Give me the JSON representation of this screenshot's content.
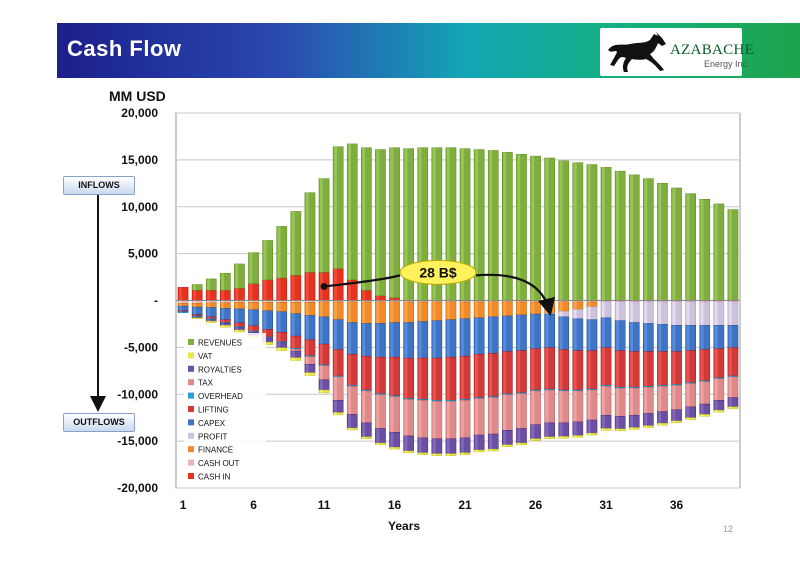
{
  "header": {
    "title": "Cash Flow"
  },
  "logo": {
    "name": "AZABACHE",
    "subtitle": "Energy Inc."
  },
  "side_labels": {
    "inflows": "INFLOWS",
    "outflows": "OUTFLOWS"
  },
  "page_number": "12",
  "colors": {
    "REVENUES": "#7fae3e",
    "VAT": "#e9e64a",
    "ROYALTIES": "#6b4fa3",
    "TAX": "#de8a8a",
    "OVERHEAD": "#2a9fd6",
    "LIFTING": "#d23a3a",
    "CAPEX": "#3f73c4",
    "PROFIT": "#ccc2dc",
    "FINANCE": "#f08a2a",
    "CASH OUT": "#e8b4b4",
    "CASH IN": "#e3321e",
    "callout": "#fff25c"
  },
  "chart_data": {
    "type": "bar",
    "stacked": true,
    "title": "Cash Flow",
    "xlabel": "Years",
    "ylabel": "MM USD",
    "ylim": [
      -20000,
      20000
    ],
    "yticks": [
      20000,
      15000,
      10000,
      5000,
      0,
      -5000,
      -10000,
      -15000,
      -20000
    ],
    "ytick_labels": [
      "20,000",
      "15,000",
      "10,000",
      "5,000",
      "-",
      "-5,000",
      "-10,000",
      "-15,000",
      "-20,000"
    ],
    "xtick_labels": [
      "1",
      "6",
      "11",
      "16",
      "21",
      "26",
      "31",
      "36"
    ],
    "grid": true,
    "legend_position": "bottom-left",
    "legend": [
      "REVENUES",
      "VAT",
      "ROYALTIES",
      "TAX",
      "OVERHEAD",
      "LIFTING",
      "CAPEX",
      "PROFIT",
      "FINANCE",
      "CASH OUT",
      "CASH IN"
    ],
    "x": [
      1,
      2,
      3,
      4,
      5,
      6,
      7,
      8,
      9,
      10,
      11,
      12,
      13,
      14,
      15,
      16,
      17,
      18,
      19,
      20,
      21,
      22,
      23,
      24,
      25,
      26,
      27,
      28,
      29,
      30,
      31,
      32,
      33,
      34,
      35,
      36,
      37,
      38,
      39,
      40
    ],
    "series": [
      {
        "name": "REVENUES",
        "values": [
          0,
          600,
          1200,
          1800,
          2600,
          3300,
          4200,
          5500,
          6800,
          8500,
          10000,
          13000,
          14500,
          15200,
          15600,
          16000,
          16200,
          16300,
          16300,
          16300,
          16200,
          16100,
          16000,
          15800,
          15600,
          15400,
          15200,
          14900,
          14700,
          14500,
          14200,
          13800,
          13400,
          13000,
          12500,
          12000,
          11400,
          10800,
          10300,
          9700
        ]
      },
      {
        "name": "VAT",
        "values": [
          0,
          -100,
          -150,
          -200,
          -200,
          -250,
          -250,
          -300,
          -300,
          -300,
          -300,
          -250,
          -200,
          -200,
          -200,
          -200,
          -200,
          -200,
          -200,
          -200,
          -200,
          -200,
          -200,
          -200,
          -200,
          -200,
          -200,
          -200,
          -200,
          -200,
          -200,
          -200,
          -200,
          -200,
          -200,
          -200,
          -200,
          -200,
          -200,
          -200
        ]
      },
      {
        "name": "ROYALTIES",
        "values": [
          0,
          -100,
          -150,
          -200,
          -250,
          -350,
          -450,
          -550,
          -700,
          -900,
          -1100,
          -1300,
          -1450,
          -1500,
          -1550,
          -1600,
          -1600,
          -1600,
          -1600,
          -1600,
          -1600,
          -1600,
          -1600,
          -1550,
          -1550,
          -1500,
          -1500,
          -1450,
          -1450,
          -1400,
          -1400,
          -1350,
          -1300,
          -1300,
          -1250,
          -1200,
          -1150,
          -1100,
          -1050,
          -1000
        ]
      },
      {
        "name": "TAX",
        "values": [
          0,
          0,
          0,
          0,
          0,
          0,
          0,
          0,
          -200,
          -800,
          -1500,
          -2500,
          -3000,
          -3400,
          -3600,
          -3800,
          -3900,
          -4000,
          -4000,
          -4000,
          -4000,
          -3900,
          -3900,
          -3800,
          -3700,
          -3600,
          -3500,
          -3400,
          -3300,
          -3200,
          -3100,
          -3000,
          -2900,
          -2800,
          -2700,
          -2600,
          -2500,
          -2400,
          -2300,
          -2200
        ]
      },
      {
        "name": "OVERHEAD",
        "values": [
          -100,
          -100,
          -100,
          -100,
          -100,
          -100,
          -100,
          -100,
          -100,
          -100,
          -100,
          -100,
          -100,
          -100,
          -100,
          -100,
          -100,
          -100,
          -100,
          -100,
          -100,
          -100,
          -100,
          -100,
          -100,
          -100,
          -100,
          -100,
          -100,
          -100,
          -100,
          -100,
          -100,
          -100,
          -100,
          -100,
          -100,
          -100,
          -100,
          -100
        ]
      },
      {
        "name": "LIFTING",
        "values": [
          -100,
          -150,
          -200,
          -300,
          -400,
          -600,
          -800,
          -1000,
          -1300,
          -1700,
          -2200,
          -2800,
          -3300,
          -3600,
          -3900,
          -4100,
          -4300,
          -4400,
          -4500,
          -4600,
          -4600,
          -4600,
          -4600,
          -4500,
          -4500,
          -4400,
          -4400,
          -4300,
          -4200,
          -4100,
          -4000,
          -3900,
          -3800,
          -3700,
          -3600,
          -3500,
          -3400,
          -3300,
          -3100,
          -3000
        ]
      },
      {
        "name": "CAPEX",
        "values": [
          -500,
          -800,
          -1000,
          -1200,
          -1500,
          -1700,
          -2000,
          -2200,
          -2400,
          -2600,
          -2900,
          -3200,
          -3400,
          -3500,
          -3600,
          -3700,
          -3800,
          -3900,
          -4000,
          -4000,
          -4000,
          -3900,
          -3900,
          -3800,
          -3800,
          -3700,
          -3600,
          -3500,
          -3400,
          -3300,
          -3200,
          -3200,
          -3100,
          -3000,
          -2900,
          -2800,
          -2700,
          -2600,
          -2500,
          -2400
        ]
      },
      {
        "name": "PROFIT",
        "values": [
          0,
          0,
          0,
          0,
          0,
          0,
          0,
          0,
          0,
          0,
          0,
          0,
          0,
          0,
          0,
          0,
          0,
          0,
          0,
          0,
          0,
          0,
          0,
          0,
          0,
          0,
          -100,
          -600,
          -1000,
          -1400,
          -1700,
          -2000,
          -2200,
          -2300,
          -2400,
          -2500,
          -2500,
          -2500,
          -2500,
          -2500
        ]
      },
      {
        "name": "FINANCE",
        "values": [
          -300,
          -400,
          -500,
          -600,
          -700,
          -800,
          -900,
          -1000,
          -1200,
          -1400,
          -1600,
          -1900,
          -2200,
          -2300,
          -2300,
          -2200,
          -2200,
          -2100,
          -2000,
          -1900,
          -1800,
          -1700,
          -1600,
          -1500,
          -1400,
          -1300,
          -1200,
          -1000,
          -800,
          -500,
          0,
          0,
          0,
          0,
          0,
          0,
          0,
          0,
          0,
          0
        ]
      },
      {
        "name": "CASH OUT",
        "values": [
          -300,
          -300,
          -250,
          -250,
          -200,
          -200,
          -200,
          -200,
          -200,
          -200,
          -150,
          -150,
          -150,
          -150,
          -150,
          -150,
          -150,
          -150,
          -150,
          -150,
          -150,
          -150,
          -150,
          -150,
          -150,
          -150,
          -150,
          -150,
          -150,
          -150,
          -150,
          -150,
          -150,
          -150,
          -150,
          -150,
          -150,
          -150,
          -150,
          -150
        ]
      },
      {
        "name": "CASH IN",
        "values": [
          1400,
          1100,
          1100,
          1100,
          1300,
          1800,
          2200,
          2400,
          2700,
          3000,
          3000,
          3400,
          2200,
          1100,
          500,
          300,
          0,
          0,
          0,
          0,
          0,
          0,
          0,
          0,
          0,
          0,
          0,
          0,
          0,
          0,
          0,
          0,
          0,
          0,
          0,
          0,
          0,
          0,
          0,
          0
        ]
      }
    ],
    "annotations": [
      {
        "text": "28 B$",
        "x_from": 11,
        "x_to": 27
      }
    ]
  }
}
